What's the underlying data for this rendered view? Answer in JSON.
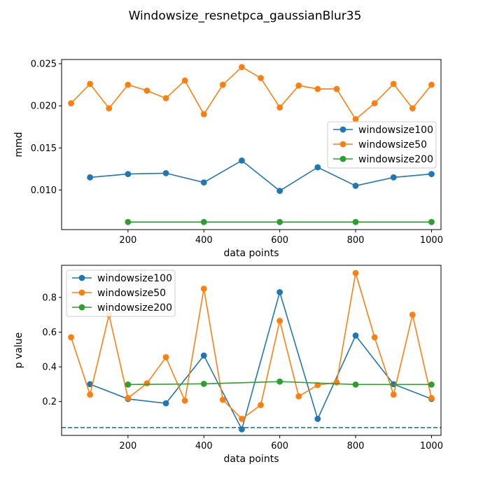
{
  "figure": {
    "title": "Windowsize_resnetpca_gaussianBlur35"
  },
  "chart_data": [
    {
      "type": "line",
      "title": "",
      "xlabel": "data points",
      "ylabel": "mmd",
      "xlim": [
        25,
        1025
      ],
      "ylim": [
        0.0053,
        0.0255
      ],
      "xticks": [
        200,
        400,
        600,
        800,
        1000
      ],
      "xtick_labels": [
        "200",
        "400",
        "600",
        "800",
        "1000"
      ],
      "yticks": [
        0.01,
        0.015,
        0.02,
        0.025
      ],
      "ytick_labels": [
        "0.010",
        "0.015",
        "0.020",
        "0.025"
      ],
      "grid": false,
      "legend": "center-right",
      "series": [
        {
          "name": "windowsize100",
          "color": "#1f77b4",
          "x": [
            100,
            200,
            300,
            400,
            500,
            600,
            700,
            800,
            900,
            1000
          ],
          "y": [
            0.0115,
            0.0119,
            0.012,
            0.0109,
            0.0135,
            0.0099,
            0.0127,
            0.0105,
            0.0115,
            0.0119
          ]
        },
        {
          "name": "windowsize50",
          "color": "#ff7f0e",
          "x": [
            50,
            100,
            150,
            200,
            250,
            300,
            350,
            400,
            450,
            500,
            550,
            600,
            650,
            700,
            750,
            800,
            850,
            900,
            950,
            1000
          ],
          "y": [
            0.0203,
            0.0226,
            0.0197,
            0.0225,
            0.0218,
            0.0209,
            0.023,
            0.019,
            0.0225,
            0.0246,
            0.0233,
            0.0198,
            0.0224,
            0.022,
            0.022,
            0.0184,
            0.0203,
            0.0226,
            0.0197,
            0.0225
          ]
        },
        {
          "name": "windowsize200",
          "color": "#2ca02c",
          "x": [
            200,
            400,
            600,
            800,
            1000
          ],
          "y": [
            0.0062,
            0.0062,
            0.0062,
            0.0062,
            0.0062
          ]
        }
      ]
    },
    {
      "type": "line",
      "title": "",
      "xlabel": "data points",
      "ylabel": "p value",
      "xlim": [
        25,
        1025
      ],
      "ylim": [
        0.005,
        0.985
      ],
      "xticks": [
        200,
        400,
        600,
        800,
        1000
      ],
      "xtick_labels": [
        "200",
        "400",
        "600",
        "800",
        "1000"
      ],
      "yticks": [
        0.2,
        0.4,
        0.6,
        0.8
      ],
      "ytick_labels": [
        "0.2",
        "0.4",
        "0.6",
        "0.8"
      ],
      "grid": false,
      "legend": "top-left",
      "reference_line": {
        "y": 0.05,
        "style": "dashed",
        "color": "#1f77b4"
      },
      "series": [
        {
          "name": "windowsize100",
          "color": "#1f77b4",
          "x": [
            100,
            200,
            300,
            400,
            500,
            600,
            700,
            800,
            900,
            1000
          ],
          "y": [
            0.3,
            0.215,
            0.19,
            0.465,
            0.04,
            0.83,
            0.1,
            0.58,
            0.3,
            0.215
          ]
        },
        {
          "name": "windowsize50",
          "color": "#ff7f0e",
          "x": [
            50,
            100,
            150,
            200,
            250,
            300,
            350,
            400,
            450,
            500,
            550,
            600,
            650,
            700,
            750,
            800,
            850,
            900,
            950,
            1000
          ],
          "y": [
            0.57,
            0.24,
            0.7,
            0.22,
            0.305,
            0.455,
            0.205,
            0.85,
            0.21,
            0.1,
            0.18,
            0.665,
            0.23,
            0.295,
            0.31,
            0.94,
            0.57,
            0.24,
            0.7,
            0.22
          ]
        },
        {
          "name": "windowsize200",
          "color": "#2ca02c",
          "x": [
            200,
            400,
            600,
            800,
            1000
          ],
          "y": [
            0.298,
            0.302,
            0.315,
            0.298,
            0.298
          ]
        }
      ]
    }
  ]
}
